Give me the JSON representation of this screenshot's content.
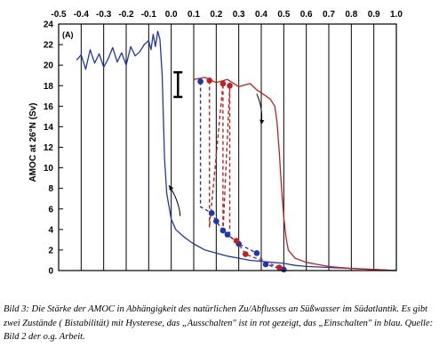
{
  "caption": "Bild 3: Die Stärke der AMOC in Abhängigkeit des natürlichen Zu/Abflusses an Süßwasser im Südatlantik. Es gibt zwei Zustände ( Bistabilität) mit Hysterese, das „Ausschalten\" ist in rot gezeigt, das „Einschalten\" in blau. Quelle: Bild 2 der o.g. Arbeit.",
  "chart_data": {
    "type": "line",
    "panel_label": "(A)",
    "ylabel": "AMOC at 26°N (Sv)",
    "xlabel": "",
    "xlim": [
      -0.5,
      1.0
    ],
    "ylim": [
      0,
      24
    ],
    "x_ticks": [
      "-0.5",
      "-0.4",
      "-0.3",
      "-0.2",
      "-0.1",
      "0.0",
      "0.1",
      "0.2",
      "0.3",
      "0.4",
      "0.5",
      "0.6",
      "0.7",
      "0.8",
      "0.9",
      "1.0"
    ],
    "y_ticks": [
      "0",
      "2",
      "4",
      "6",
      "8",
      "10",
      "12",
      "14",
      "16",
      "18",
      "20",
      "22",
      "24"
    ],
    "grid": "vertical",
    "colors": {
      "blue": "#1f36b4",
      "red": "#c42020",
      "axis": "#000000"
    },
    "series": [
      {
        "color": "blue",
        "x": [
          -0.42,
          -0.4,
          -0.38,
          -0.36,
          -0.34,
          -0.32,
          -0.3,
          -0.28,
          -0.26,
          -0.24,
          -0.22,
          -0.2,
          -0.18,
          -0.16,
          -0.14,
          -0.12,
          -0.1,
          -0.09,
          -0.08,
          -0.07,
          -0.06,
          -0.05,
          -0.04,
          -0.035,
          -0.03,
          -0.02,
          0.0,
          0.02,
          0.05,
          0.08,
          0.1,
          0.15,
          0.2,
          0.25,
          0.3,
          0.35,
          0.4,
          0.45,
          0.5,
          0.55,
          0.6,
          0.7,
          0.8,
          0.9,
          1.0
        ],
        "y": [
          20.5,
          21.0,
          19.6,
          21.5,
          20.2,
          21.1,
          19.8,
          20.6,
          21.7,
          20.3,
          21.2,
          20.0,
          21.8,
          20.9,
          21.3,
          22.0,
          22.4,
          21.5,
          23.0,
          21.8,
          23.3,
          22.5,
          19.0,
          15.0,
          11.0,
          7.5,
          5.0,
          4.0,
          3.4,
          2.9,
          2.6,
          2.0,
          1.7,
          1.4,
          1.2,
          1.0,
          0.9,
          0.8,
          0.7,
          0.5,
          0.4,
          0.3,
          0.2,
          0.1,
          0.0
        ]
      },
      {
        "color": "red",
        "x": [
          0.1,
          0.15,
          0.2,
          0.25,
          0.3,
          0.35,
          0.38,
          0.4,
          0.42,
          0.44,
          0.46,
          0.47,
          0.48,
          0.49,
          0.5,
          0.51,
          0.52,
          0.55,
          0.6,
          0.65,
          0.7,
          0.8,
          0.9,
          1.0
        ],
        "y": [
          18.6,
          18.8,
          18.3,
          18.6,
          17.9,
          18.2,
          17.6,
          17.3,
          17.0,
          16.7,
          16.0,
          14.5,
          11.5,
          8.0,
          5.2,
          3.2,
          2.0,
          1.2,
          0.8,
          0.6,
          0.4,
          0.2,
          0.1,
          0.0
        ]
      }
    ],
    "markers": {
      "blue": {
        "x": [
          0.13,
          0.18,
          0.2,
          0.23,
          0.25,
          0.3,
          0.38,
          0.42,
          0.5
        ],
        "y": [
          18.4,
          5.6,
          4.8,
          3.9,
          3.5,
          2.6,
          1.7,
          0.6,
          0.1
        ]
      },
      "red": {
        "x": [
          0.17,
          0.23,
          0.26,
          0.29,
          0.33,
          0.48
        ],
        "y": [
          18.5,
          18.2,
          18.0,
          2.9,
          1.6,
          0.3
        ]
      }
    },
    "dashed": {
      "blue": {
        "x": [
          0.13,
          0.13,
          0.18,
          0.2,
          0.23,
          0.25,
          0.3,
          0.38,
          0.42,
          0.5
        ],
        "y": [
          18.4,
          6.2,
          5.6,
          4.8,
          3.9,
          3.5,
          2.6,
          1.7,
          0.6,
          0.1
        ]
      },
      "red": {
        "x": [
          0.17,
          0.17,
          0.23,
          0.23,
          0.26,
          0.26,
          0.29,
          0.33,
          0.48
        ],
        "y": [
          18.5,
          4.2,
          18.2,
          3.6,
          18.0,
          3.3,
          2.9,
          1.6,
          0.3
        ]
      }
    },
    "error_bar": {
      "x": 0.03,
      "y_low": 16.9,
      "y_high": 19.3
    },
    "arrows": [
      {
        "color": "red",
        "direction": "down",
        "x": [
          0.38,
          0.4
        ],
        "y": [
          17.2,
          14.2
        ]
      },
      {
        "color": "blue",
        "direction": "up",
        "x": [
          0.04,
          -0.01
        ],
        "y": [
          5.3,
          8.3
        ]
      }
    ]
  }
}
